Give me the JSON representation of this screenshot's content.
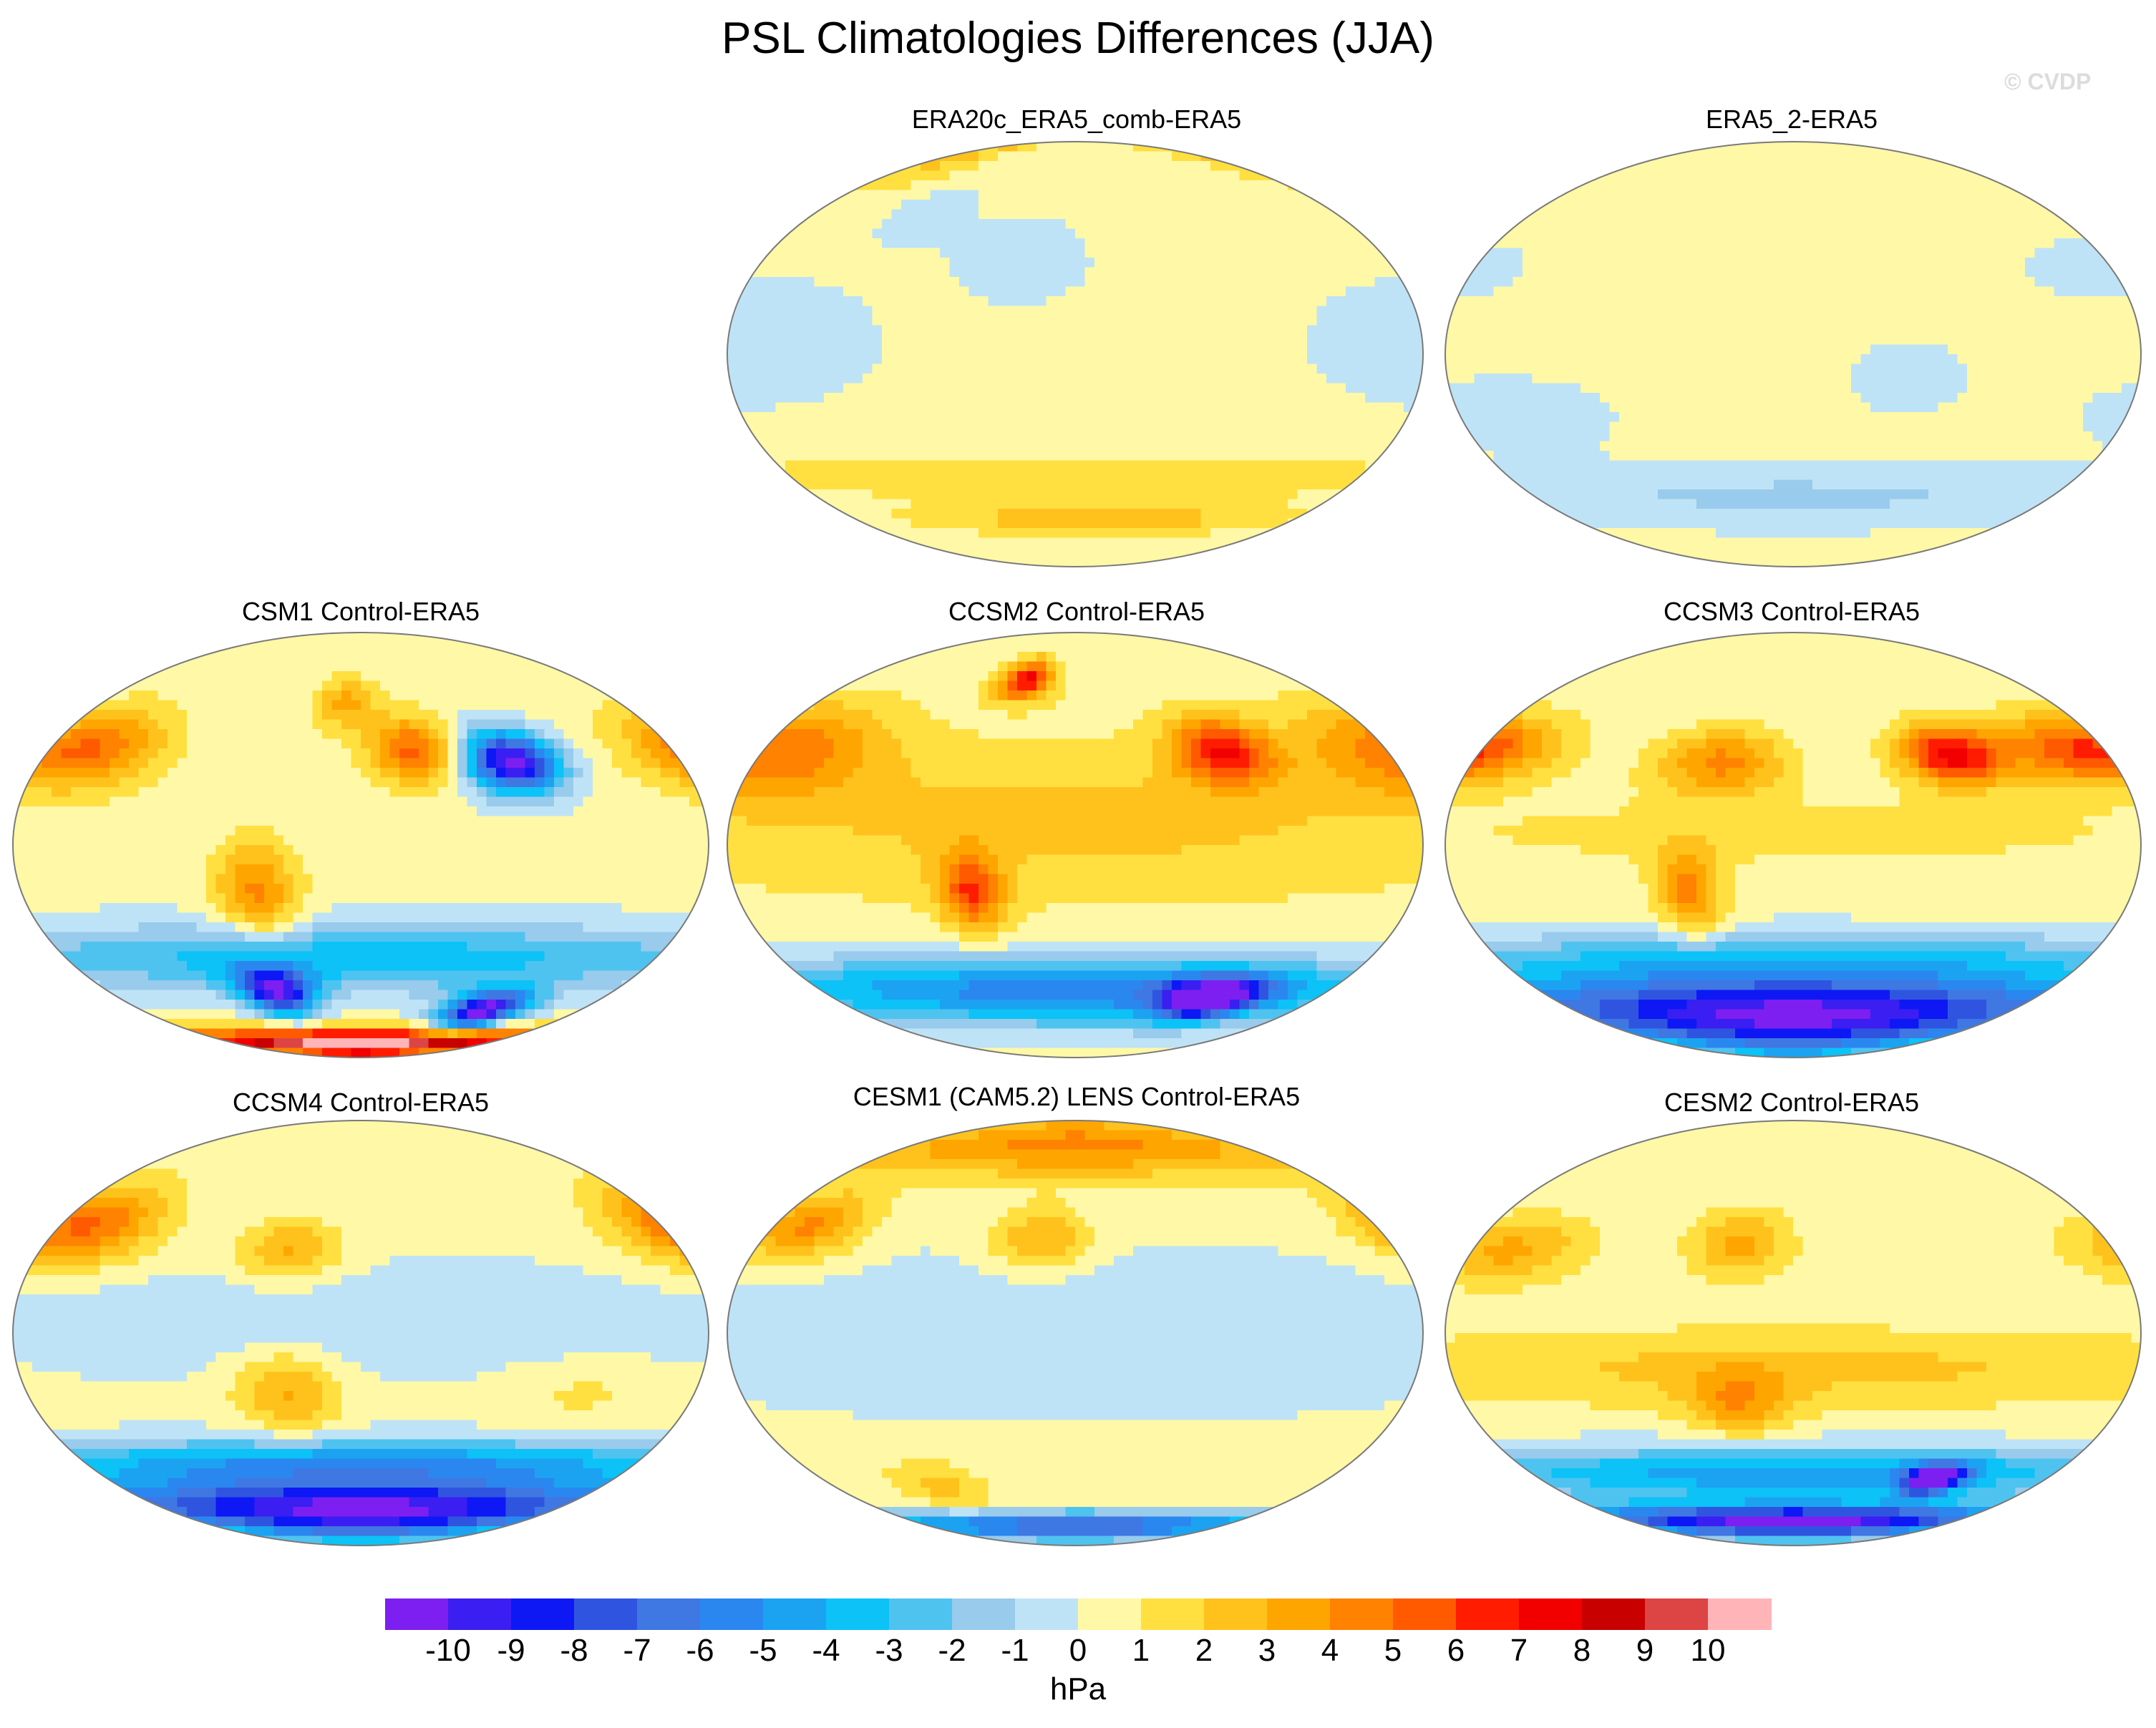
{
  "figure": {
    "title": "PSL Climatologies Differences (JJA)",
    "watermark": "© CVDP"
  },
  "chart_data": {
    "type": "heatmap",
    "title": "PSL Climatologies Differences (JJA)",
    "projection": "global-ellipse",
    "colorbar": {
      "units": "hPa",
      "ticks": [
        "-10",
        "-9",
        "-8",
        "-7",
        "-6",
        "-5",
        "-4",
        "-3",
        "-2",
        "-1",
        "0",
        "1",
        "2",
        "3",
        "4",
        "5",
        "6",
        "7",
        "8",
        "9",
        "10"
      ],
      "colors": [
        "#7d1ff0",
        "#3b1ef2",
        "#0d18f5",
        "#2f55e0",
        "#3f77e3",
        "#2b87f0",
        "#1ba3f2",
        "#0cc2f7",
        "#4fc3f0",
        "#98cbec",
        "#bfe3f6",
        "#fff8a6",
        "#ffe040",
        "#ffc21c",
        "#ffa500",
        "#ff8200",
        "#ff5a00",
        "#ff1c00",
        "#f20000",
        "#c80000",
        "#dd4444",
        "#ffb5b8"
      ]
    },
    "panels": [
      {
        "id": "era20c",
        "label": "ERA20c_ERA5_comb-ERA5",
        "fields": [
          {
            "lat": 85,
            "lon": -160,
            "sx": 40,
            "sy": 10,
            "value": 2
          },
          {
            "lat": 5,
            "lon": -170,
            "sx": 45,
            "sy": 18,
            "value": -1
          },
          {
            "lat": -52,
            "lon": 0,
            "sx": 180,
            "sy": 7,
            "value": 1.5
          },
          {
            "lat": -70,
            "lon": 20,
            "sx": 100,
            "sy": 5,
            "value": 2.5
          },
          {
            "lat": 40,
            "lon": -30,
            "sx": 25,
            "sy": 12,
            "value": -1
          },
          {
            "lat": 60,
            "lon": -100,
            "sx": 20,
            "sy": 10,
            "value": -1
          }
        ]
      },
      {
        "id": "era5_2",
        "label": "ERA5_2-ERA5",
        "fields": [
          {
            "lat": -60,
            "lon": 0,
            "sx": 180,
            "sy": 9,
            "value": -1.5
          },
          {
            "lat": -25,
            "lon": -150,
            "sx": 35,
            "sy": 10,
            "value": -1
          },
          {
            "lat": 35,
            "lon": 170,
            "sx": 25,
            "sy": 8,
            "value": -1
          },
          {
            "lat": -10,
            "lon": 60,
            "sx": 20,
            "sy": 10,
            "value": -1
          }
        ]
      },
      {
        "id": "csm1",
        "label": "CSM1 Control-ERA5",
        "fields": [
          {
            "lat": 40,
            "lon": -160,
            "sx": 30,
            "sy": 12,
            "value": 5
          },
          {
            "lat": 35,
            "lon": 85,
            "sx": 18,
            "sy": 9,
            "value": -11
          },
          {
            "lat": 40,
            "lon": 30,
            "sx": 18,
            "sy": 10,
            "value": 5
          },
          {
            "lat": -70,
            "lon": 100,
            "sx": 22,
            "sy": 6,
            "value": -11
          },
          {
            "lat": -62,
            "lon": -60,
            "sx": 18,
            "sy": 7,
            "value": -10
          },
          {
            "lat": -48,
            "lon": 0,
            "sx": 180,
            "sy": 10,
            "value": -4
          },
          {
            "lat": -20,
            "lon": -55,
            "sx": 15,
            "sy": 15,
            "value": 4
          },
          {
            "lat": 60,
            "lon": -10,
            "sx": 15,
            "sy": 8,
            "value": 3
          },
          {
            "lat": -84,
            "lon": 0,
            "sx": 180,
            "sy": 4,
            "value": 11
          }
        ]
      },
      {
        "id": "ccsm2",
        "label": "CCSM2 Control-ERA5",
        "fields": [
          {
            "lat": 40,
            "lon": -170,
            "sx": 40,
            "sy": 14,
            "value": 4
          },
          {
            "lat": 70,
            "lon": -40,
            "sx": 15,
            "sy": 6,
            "value": 7
          },
          {
            "lat": 40,
            "lon": 85,
            "sx": 20,
            "sy": 10,
            "value": 6
          },
          {
            "lat": 10,
            "lon": 0,
            "sx": 180,
            "sy": 25,
            "value": 2
          },
          {
            "lat": -62,
            "lon": 0,
            "sx": 180,
            "sy": 10,
            "value": -6
          },
          {
            "lat": -65,
            "lon": 100,
            "sx": 25,
            "sy": 6,
            "value": -10
          },
          {
            "lat": -20,
            "lon": -55,
            "sx": 12,
            "sy": 12,
            "value": 5
          }
        ]
      },
      {
        "id": "ccsm3",
        "label": "CCSM3 Control-ERA5",
        "fields": [
          {
            "lat": 40,
            "lon": 170,
            "sx": 35,
            "sy": 10,
            "value": 6
          },
          {
            "lat": 38,
            "lon": 90,
            "sx": 20,
            "sy": 9,
            "value": 7
          },
          {
            "lat": 35,
            "lon": -40,
            "sx": 25,
            "sy": 10,
            "value": 4
          },
          {
            "lat": -72,
            "lon": 0,
            "sx": 180,
            "sy": 12,
            "value": -11
          },
          {
            "lat": -48,
            "lon": 0,
            "sx": 180,
            "sy": 8,
            "value": -3
          },
          {
            "lat": -20,
            "lon": -55,
            "sx": 12,
            "sy": 14,
            "value": 4
          },
          {
            "lat": 5,
            "lon": 0,
            "sx": 180,
            "sy": 12,
            "value": 1
          }
        ]
      },
      {
        "id": "ccsm4",
        "label": "CCSM4 Control-ERA5",
        "fields": [
          {
            "lat": 45,
            "lon": -165,
            "sx": 30,
            "sy": 12,
            "value": 5
          },
          {
            "lat": 35,
            "lon": -40,
            "sx": 20,
            "sy": 9,
            "value": 3
          },
          {
            "lat": -25,
            "lon": -40,
            "sx": 20,
            "sy": 12,
            "value": 3
          },
          {
            "lat": -75,
            "lon": 0,
            "sx": 180,
            "sy": 9,
            "value": -11
          },
          {
            "lat": -55,
            "lon": 0,
            "sx": 180,
            "sy": 7,
            "value": -5
          },
          {
            "lat": 5,
            "lon": 0,
            "sx": 180,
            "sy": 18,
            "value": -1
          },
          {
            "lat": -25,
            "lon": 120,
            "sx": 30,
            "sy": 10,
            "value": 1
          }
        ]
      },
      {
        "id": "cesm1",
        "label": "CESM1 (CAM5.2) LENS Control-ERA5",
        "fields": [
          {
            "lat": 80,
            "lon": 0,
            "sx": 180,
            "sy": 10,
            "value": 4
          },
          {
            "lat": 45,
            "lon": -160,
            "sx": 25,
            "sy": 10,
            "value": 4
          },
          {
            "lat": 0,
            "lon": 0,
            "sx": 180,
            "sy": 25,
            "value": -1
          },
          {
            "lat": -65,
            "lon": -100,
            "sx": 25,
            "sy": 8,
            "value": 2
          },
          {
            "lat": -82,
            "lon": 0,
            "sx": 180,
            "sy": 4,
            "value": -8
          },
          {
            "lat": 40,
            "lon": -20,
            "sx": 20,
            "sy": 9,
            "value": 3
          }
        ]
      },
      {
        "id": "cesm2",
        "label": "CESM2 Control-ERA5",
        "fields": [
          {
            "lat": 35,
            "lon": -160,
            "sx": 30,
            "sy": 10,
            "value": 3
          },
          {
            "lat": 38,
            "lon": -30,
            "sx": 20,
            "sy": 10,
            "value": 3
          },
          {
            "lat": -15,
            "lon": 0,
            "sx": 180,
            "sy": 12,
            "value": 2
          },
          {
            "lat": -30,
            "lon": -30,
            "sx": 20,
            "sy": 10,
            "value": 3
          },
          {
            "lat": -60,
            "lon": 0,
            "sx": 180,
            "sy": 8,
            "value": -5
          },
          {
            "lat": -62,
            "lon": 100,
            "sx": 15,
            "sy": 5,
            "value": -9
          },
          {
            "lat": -80,
            "lon": 0,
            "sx": 180,
            "sy": 5,
            "value": -11
          }
        ]
      }
    ]
  }
}
